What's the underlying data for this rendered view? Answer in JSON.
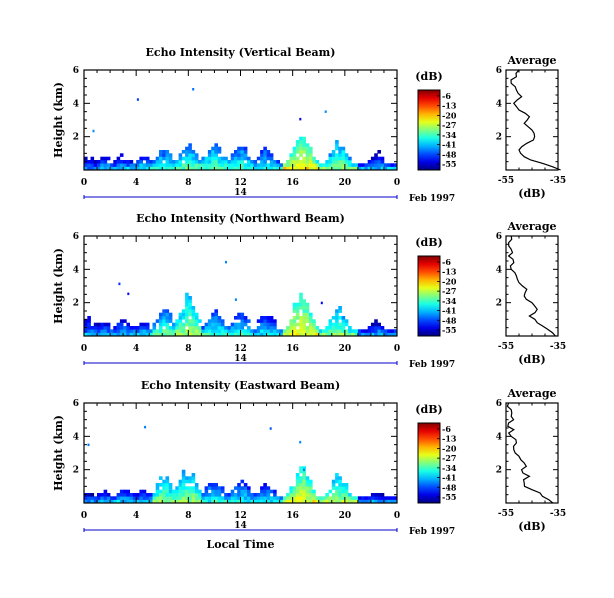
{
  "figure": {
    "x_axis_label": "Local Time",
    "date_label": "Feb 1997"
  },
  "chart_data": [
    {
      "type": "heatmap",
      "title": "Echo Intensity (Vertical Beam)",
      "ylabel": "Height (km)",
      "xlabel": "",
      "x_ticks": [
        "0",
        "4",
        "8",
        "12",
        "16",
        "20",
        "0"
      ],
      "x_range": [
        0,
        24
      ],
      "day_label": "14",
      "y_ticks": [
        "2",
        "4",
        "6"
      ],
      "ylim": [
        0,
        6
      ],
      "colorbar": {
        "label": "(dB)",
        "ticks": [
          "-6",
          "-13",
          "-20",
          "-27",
          "-34",
          "-41",
          "-48",
          "-55"
        ],
        "range": [
          -55,
          -6
        ]
      },
      "features": [
        {
          "x": 0.3,
          "h": 0.8,
          "v": -48
        },
        {
          "x": 1.5,
          "h": 0.7,
          "v": -45
        },
        {
          "x": 3.0,
          "h": 0.8,
          "v": -46
        },
        {
          "x": 4.5,
          "h": 0.9,
          "v": -44
        },
        {
          "x": 6.2,
          "h": 1.2,
          "v": -40
        },
        {
          "x": 8.0,
          "h": 1.3,
          "v": -38
        },
        {
          "x": 10.0,
          "h": 1.5,
          "v": -38
        },
        {
          "x": 12.0,
          "h": 1.4,
          "v": -40
        },
        {
          "x": 14.0,
          "h": 1.3,
          "v": -42
        },
        {
          "x": 16.7,
          "h": 2.2,
          "v": -30
        },
        {
          "x": 19.5,
          "h": 1.5,
          "v": -36
        },
        {
          "x": 22.5,
          "h": 0.9,
          "v": -46
        }
      ],
      "average": {
        "title": "Average",
        "xlabel": "(dB)",
        "x_ticks": [
          "-55",
          "-35"
        ],
        "xlim": [
          -55,
          -35
        ],
        "y_ticks": [
          "2",
          "4",
          "6"
        ],
        "ylim": [
          0,
          6
        ],
        "x": [
          -34,
          -41,
          -48,
          -50,
          -47,
          -44,
          -45,
          -48,
          -46,
          -50,
          -52,
          -49,
          -51,
          -53,
          -51,
          -50
        ],
        "y": [
          0.0,
          0.4,
          0.8,
          1.2,
          1.6,
          2.0,
          2.4,
          2.8,
          3.2,
          3.6,
          4.0,
          4.4,
          4.8,
          5.2,
          5.6,
          6.0
        ]
      }
    },
    {
      "type": "heatmap",
      "title": "Echo Intensity (Northward Beam)",
      "ylabel": "Height (km)",
      "xlabel": "",
      "x_ticks": [
        "0",
        "4",
        "8",
        "12",
        "16",
        "20",
        "0"
      ],
      "x_range": [
        0,
        24
      ],
      "day_label": "14",
      "y_ticks": [
        "2",
        "4",
        "6"
      ],
      "ylim": [
        0,
        6
      ],
      "colorbar": {
        "label": "(dB)",
        "ticks": [
          "-6",
          "-13",
          "-20",
          "-27",
          "-34",
          "-41",
          "-48",
          "-55"
        ],
        "range": [
          -55,
          -6
        ]
      },
      "features": [
        {
          "x": 0.3,
          "h": 0.9,
          "v": -46
        },
        {
          "x": 1.5,
          "h": 0.7,
          "v": -46
        },
        {
          "x": 3.0,
          "h": 0.8,
          "v": -45
        },
        {
          "x": 4.5,
          "h": 0.8,
          "v": -45
        },
        {
          "x": 6.2,
          "h": 1.4,
          "v": -38
        },
        {
          "x": 8.0,
          "h": 2.3,
          "v": -34
        },
        {
          "x": 10.0,
          "h": 1.3,
          "v": -40
        },
        {
          "x": 12.0,
          "h": 1.3,
          "v": -41
        },
        {
          "x": 14.0,
          "h": 1.2,
          "v": -43
        },
        {
          "x": 16.7,
          "h": 2.4,
          "v": -30
        },
        {
          "x": 19.5,
          "h": 1.5,
          "v": -36
        },
        {
          "x": 22.5,
          "h": 0.8,
          "v": -47
        }
      ],
      "average": {
        "title": "Average",
        "xlabel": "(dB)",
        "x_ticks": [
          "-55",
          "-35"
        ],
        "xlim": [
          -55,
          -35
        ],
        "y_ticks": [
          "2",
          "4",
          "6"
        ],
        "ylim": [
          0,
          6
        ],
        "x": [
          -36,
          -39,
          -43,
          -46,
          -43,
          -45,
          -48,
          -47,
          -50,
          -51,
          -53,
          -52,
          -54,
          -53,
          -54,
          -53
        ],
        "y": [
          0.0,
          0.4,
          0.8,
          1.2,
          1.6,
          2.0,
          2.4,
          2.8,
          3.2,
          3.6,
          4.0,
          4.4,
          4.8,
          5.2,
          5.6,
          6.0
        ]
      }
    },
    {
      "type": "heatmap",
      "title": "Echo Intensity (Eastward Beam)",
      "ylabel": "Height (km)",
      "xlabel": "Local Time",
      "x_ticks": [
        "0",
        "4",
        "8",
        "12",
        "16",
        "20",
        "0"
      ],
      "x_range": [
        0,
        24
      ],
      "day_label": "14",
      "y_ticks": [
        "2",
        "4",
        "6"
      ],
      "ylim": [
        0,
        6
      ],
      "colorbar": {
        "label": "(dB)",
        "ticks": [
          "-6",
          "-13",
          "-20",
          "-27",
          "-34",
          "-41",
          "-48",
          "-55"
        ],
        "range": [
          -55,
          -6
        ]
      },
      "features": [
        {
          "x": 0.3,
          "h": 0.5,
          "v": -47
        },
        {
          "x": 1.5,
          "h": 0.6,
          "v": -46
        },
        {
          "x": 3.0,
          "h": 0.7,
          "v": -45
        },
        {
          "x": 4.5,
          "h": 0.7,
          "v": -45
        },
        {
          "x": 6.2,
          "h": 1.6,
          "v": -36
        },
        {
          "x": 8.0,
          "h": 1.9,
          "v": -35
        },
        {
          "x": 10.0,
          "h": 1.2,
          "v": -41
        },
        {
          "x": 12.0,
          "h": 1.2,
          "v": -42
        },
        {
          "x": 14.0,
          "h": 1.1,
          "v": -43
        },
        {
          "x": 16.7,
          "h": 2.1,
          "v": -31
        },
        {
          "x": 19.5,
          "h": 1.6,
          "v": -34
        },
        {
          "x": 22.5,
          "h": 0.6,
          "v": -47
        }
      ],
      "average": {
        "title": "Average",
        "xlabel": "(dB)",
        "x_ticks": [
          "-55",
          "-35"
        ],
        "xlim": [
          -55,
          -35
        ],
        "y_ticks": [
          "2",
          "4",
          "6"
        ],
        "ylim": [
          0,
          6
        ],
        "x": [
          -37,
          -41,
          -45,
          -48,
          -46,
          -49,
          -48,
          -50,
          -52,
          -51,
          -53,
          -52,
          -54,
          -53,
          -53,
          -54
        ],
        "y": [
          0.0,
          0.4,
          0.8,
          1.2,
          1.6,
          2.0,
          2.4,
          2.8,
          3.2,
          3.6,
          4.0,
          4.4,
          4.8,
          5.2,
          5.6,
          6.0
        ]
      }
    }
  ]
}
